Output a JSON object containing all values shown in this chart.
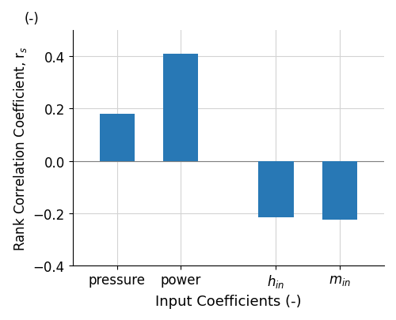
{
  "categories": [
    "pressure",
    "power",
    "h$_{in}$",
    "m$_{in}$"
  ],
  "values": [
    0.18,
    0.41,
    -0.215,
    -0.225
  ],
  "bar_color": "#2878b5",
  "xlabel": "Input Coefficients (-)",
  "ylabel_main": "Rank Correlation Coefficient, r$_s$",
  "ylabel_unit": "(-)",
  "ylim": [
    -0.4,
    0.5
  ],
  "yticks": [
    -0.4,
    -0.2,
    0.0,
    0.2,
    0.4
  ],
  "grid_color": "#d3d3d3",
  "bar_width": 0.55,
  "ylabel_fontsize": 12,
  "xlabel_fontsize": 13,
  "tick_fontsize": 12,
  "figsize": [
    5.0,
    4.06
  ],
  "dpi": 100,
  "x_positions": [
    1,
    2,
    3.5,
    4.5
  ]
}
